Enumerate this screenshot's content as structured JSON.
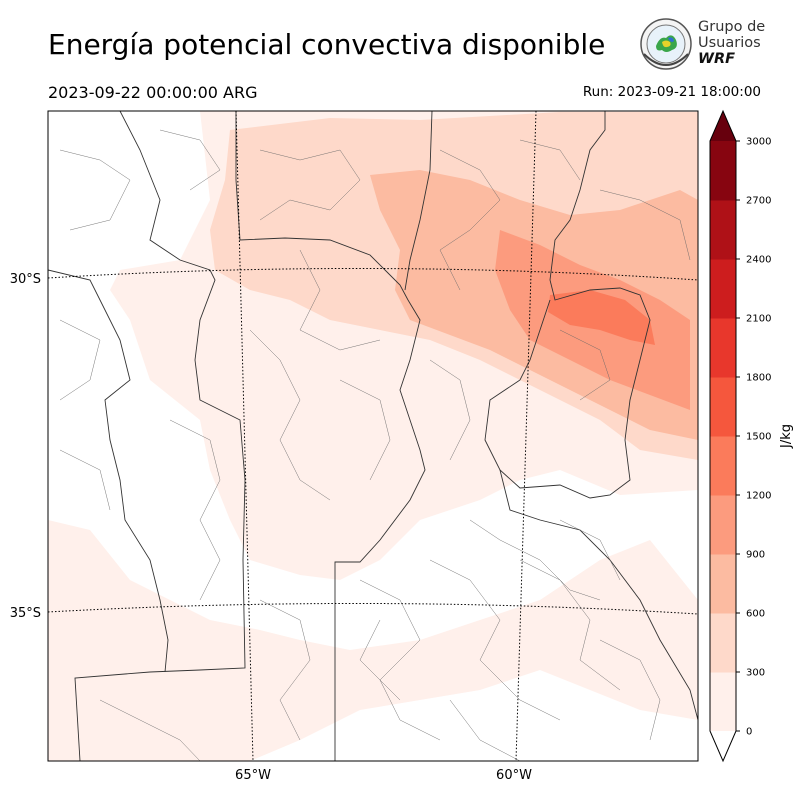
{
  "header": {
    "title": "Energía potencial convectiva disponible",
    "valid_time": "2023-09-22 00:00:00 ARG",
    "run_time": "Run: 2023-09-21 18:00:00"
  },
  "logo": {
    "line1": "Grupo de",
    "line2": "Usuarios",
    "line3": "WRF"
  },
  "map": {
    "lat_labels": [
      "30°S",
      "35°S"
    ],
    "lon_labels": [
      "65°W",
      "60°W"
    ]
  },
  "colorbar": {
    "label": "J/kg",
    "ticks": [
      "0",
      "300",
      "600",
      "900",
      "1200",
      "1500",
      "1800",
      "2100",
      "2400",
      "2700",
      "3000"
    ],
    "colors": [
      "#fff0eb",
      "#fed9ca",
      "#fcbba1",
      "#fc9b7e",
      "#fb7b5b",
      "#f5573d",
      "#e8372c",
      "#cd1d1e",
      "#af1117",
      "#870510"
    ],
    "over_color": "#67000d",
    "under_color": "#ffffff"
  }
}
